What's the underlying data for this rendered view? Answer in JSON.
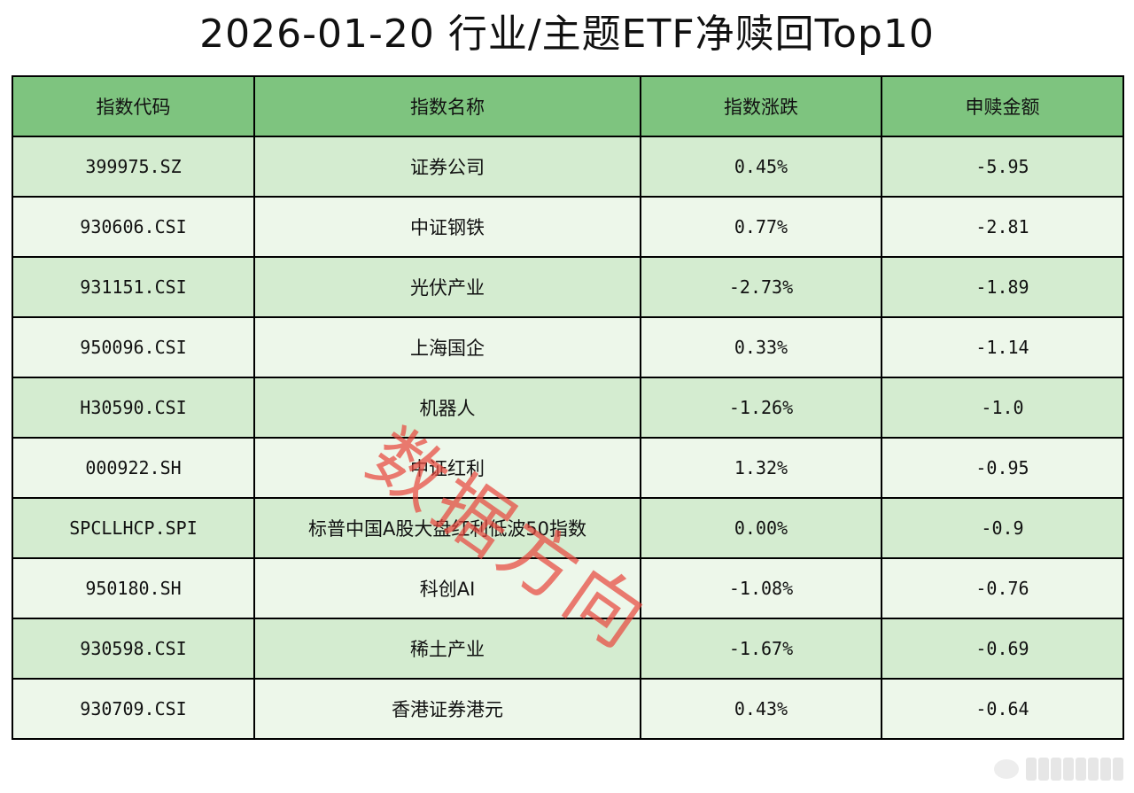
{
  "title": "2026-01-20 行业/主题ETF净赎回Top10",
  "headers": [
    "指数代码",
    "指数名称",
    "指数涨跌",
    "申赎金额"
  ],
  "rows": [
    [
      "399975.SZ",
      "证券公司",
      "0.45%",
      "-5.95"
    ],
    [
      "930606.CSI",
      "中证钢铁",
      "0.77%",
      "-2.81"
    ],
    [
      "931151.CSI",
      "光伏产业",
      "-2.73%",
      "-1.89"
    ],
    [
      "950096.CSI",
      "上海国企",
      "0.33%",
      "-1.14"
    ],
    [
      "H30590.CSI",
      "机器人",
      "-1.26%",
      "-1.0"
    ],
    [
      "000922.SH",
      "中证红利",
      "1.32%",
      "-0.95"
    ],
    [
      "SPCLLHCP.SPI",
      "标普中国A股大盘红利低波50指数",
      "0.00%",
      "-0.9"
    ],
    [
      "950180.SH",
      "科创AI",
      "-1.08%",
      "-0.76"
    ],
    [
      "930598.CSI",
      "稀土产业",
      "-1.67%",
      "-0.69"
    ],
    [
      "930709.CSI",
      "香港证券港元",
      "0.43%",
      "-0.64"
    ]
  ],
  "watermark": "数据方向",
  "colors": {
    "header_bg": "#7ec47f",
    "row_odd_bg": "#d4ecd0",
    "row_even_bg": "#edf7ea",
    "watermark": "#e8483e"
  }
}
